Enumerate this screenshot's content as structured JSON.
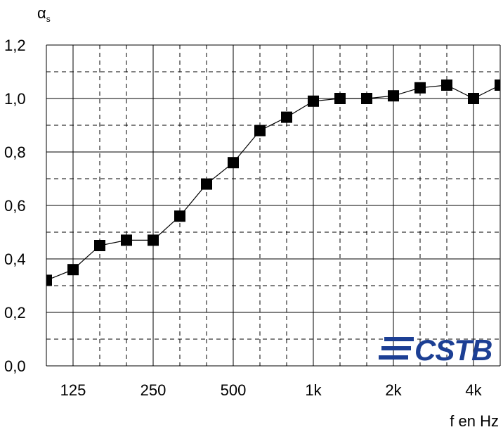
{
  "chart_data": {
    "type": "line",
    "ylabel": "α",
    "ylabel_sub": "s",
    "xlabel": "f en Hz",
    "x_ticks": [
      "125",
      "250",
      "500",
      "1k",
      "2k",
      "4k"
    ],
    "y_ticks": [
      "0,0",
      "0,2",
      "0,4",
      "0,6",
      "0,8",
      "1,0",
      "1,2"
    ],
    "ylim": [
      0,
      1.2
    ],
    "x": [
      "100",
      "125",
      "160",
      "200",
      "250",
      "315",
      "400",
      "500",
      "630",
      "800",
      "1000",
      "1250",
      "1600",
      "2000",
      "2500",
      "3150",
      "4000",
      "5000"
    ],
    "values": [
      0.32,
      0.36,
      0.45,
      0.47,
      0.47,
      0.56,
      0.68,
      0.76,
      0.88,
      0.93,
      0.99,
      1.0,
      1.0,
      1.01,
      1.04,
      1.05,
      1.0,
      1.05
    ],
    "grid": true,
    "marker": "square",
    "line_color": "#000000"
  },
  "logo": {
    "text": "CSTB",
    "color": "#1c3f94"
  }
}
